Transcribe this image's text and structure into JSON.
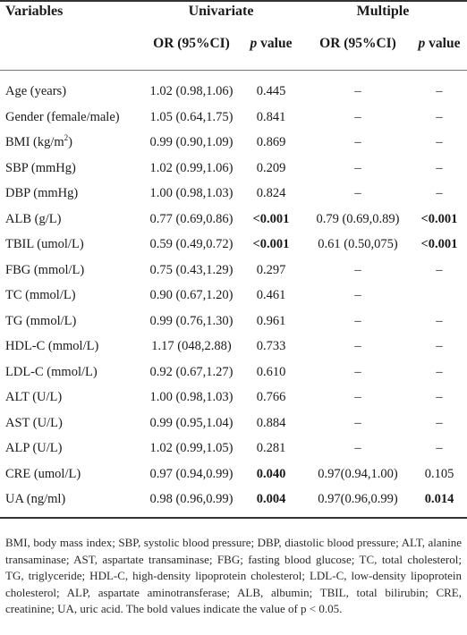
{
  "header": {
    "variables": "Variables",
    "univariate": "Univariate",
    "multiple": "Multiple",
    "or_label": "OR (95%CI)",
    "p_label_italic": "p",
    "p_label_rest": " value"
  },
  "rows": [
    {
      "var": "Age (years)",
      "sup": "",
      "uni_or": "1.02 (0.98,1.06)",
      "uni_p": "0.445",
      "uni_p_bold": false,
      "mul_or": "–",
      "mul_p": "–",
      "mul_p_bold": false
    },
    {
      "var": "Gender (female/male)",
      "sup": "",
      "uni_or": "1.05 (0.64,1.75)",
      "uni_p": "0.841",
      "uni_p_bold": false,
      "mul_or": "–",
      "mul_p": "–",
      "mul_p_bold": false
    },
    {
      "var": "BMI (kg/m",
      "sup": "2",
      "var_tail": ")",
      "uni_or": "0.99 (0.90,1.09)",
      "uni_p": "0.869",
      "uni_p_bold": false,
      "mul_or": "–",
      "mul_p": "–",
      "mul_p_bold": false
    },
    {
      "var": "SBP (mmHg)",
      "sup": "",
      "uni_or": "1.02 (0.99,1.06)",
      "uni_p": "0.209",
      "uni_p_bold": false,
      "mul_or": "–",
      "mul_p": "–",
      "mul_p_bold": false
    },
    {
      "var": "DBP (mmHg)",
      "sup": "",
      "uni_or": "1.00 (0.98,1.03)",
      "uni_p": "0.824",
      "uni_p_bold": false,
      "mul_or": "–",
      "mul_p": "–",
      "mul_p_bold": false
    },
    {
      "var": "ALB (g/L)",
      "sup": "",
      "uni_or": "0.77 (0.69,0.86)",
      "uni_p": "<0.001",
      "uni_p_bold": true,
      "mul_or": "0.79 (0.69,0.89)",
      "mul_p": "<0.001",
      "mul_p_bold": true
    },
    {
      "var": "TBIL (umol/L)",
      "sup": "",
      "uni_or": "0.59 (0.49,0.72)",
      "uni_p": "<0.001",
      "uni_p_bold": true,
      "mul_or": "0.61 (0.50,075)",
      "mul_p": "<0.001",
      "mul_p_bold": true
    },
    {
      "var": "FBG (mmol/L)",
      "sup": "",
      "uni_or": "0.75 (0.43,1.29)",
      "uni_p": "0.297",
      "uni_p_bold": false,
      "mul_or": "–",
      "mul_p": "–",
      "mul_p_bold": false
    },
    {
      "var": "TC (mmol/L)",
      "sup": "",
      "uni_or": "0.90 (0.67,1.20)",
      "uni_p": "0.461",
      "uni_p_bold": false,
      "mul_or": "–",
      "mul_p": "",
      "mul_p_bold": false
    },
    {
      "var": "TG (mmol/L)",
      "sup": "",
      "uni_or": "0.99 (0.76,1.30)",
      "uni_p": "0.961",
      "uni_p_bold": false,
      "mul_or": "–",
      "mul_p": "–",
      "mul_p_bold": false
    },
    {
      "var": "HDL-C (mmol/L)",
      "sup": "",
      "uni_or": "1.17 (048,2.88)",
      "uni_p": "0.733",
      "uni_p_bold": false,
      "mul_or": "–",
      "mul_p": "–",
      "mul_p_bold": false
    },
    {
      "var": "LDL-C (mmol/L)",
      "sup": "",
      "uni_or": "0.92 (0.67,1.27)",
      "uni_p": "0.610",
      "uni_p_bold": false,
      "mul_or": "–",
      "mul_p": "–",
      "mul_p_bold": false
    },
    {
      "var": "ALT (U/L)",
      "sup": "",
      "uni_or": "1.00 (0.98,1.03)",
      "uni_p": "0.766",
      "uni_p_bold": false,
      "mul_or": "–",
      "mul_p": "–",
      "mul_p_bold": false
    },
    {
      "var": "AST (U/L)",
      "sup": "",
      "uni_or": "0.99 (0.95,1.04)",
      "uni_p": "0.884",
      "uni_p_bold": false,
      "mul_or": "–",
      "mul_p": "–",
      "mul_p_bold": false
    },
    {
      "var": "ALP (U/L)",
      "sup": "",
      "uni_or": "1.02 (0.99,1.05)",
      "uni_p": "0.281",
      "uni_p_bold": false,
      "mul_or": "–",
      "mul_p": "–",
      "mul_p_bold": false
    },
    {
      "var": "CRE (umol/L)",
      "sup": "",
      "uni_or": "0.97 (0.94,0.99)",
      "uni_p": "0.040",
      "uni_p_bold": true,
      "mul_or": "0.97(0.94,1.00)",
      "mul_p": "0.105",
      "mul_p_bold": false
    },
    {
      "var": "UA (ng/ml)",
      "sup": "",
      "uni_or": "0.98 (0.96,0.99)",
      "uni_p": "0.004",
      "uni_p_bold": true,
      "mul_or": "0.97(0.96,0.99)",
      "mul_p": "0.014",
      "mul_p_bold": true
    }
  ],
  "footnote": "BMI, body mass index; SBP, systolic blood pressure; DBP, diastolic blood pressure; ALT, alanine transaminase; AST, aspartate transaminase; FBG; fasting blood glucose; TC, total cholesterol; TG, triglyceride; HDL-C, high-density lipoprotein cholesterol; LDL-C, low-density lipoprotein cholesterol; ALP, aspartate aminotransferase; ALB, albumin; TBIL, total bilirubin; CRE, creatinine; UA, uric acid. The bold values indicate the value of p < 0.05."
}
